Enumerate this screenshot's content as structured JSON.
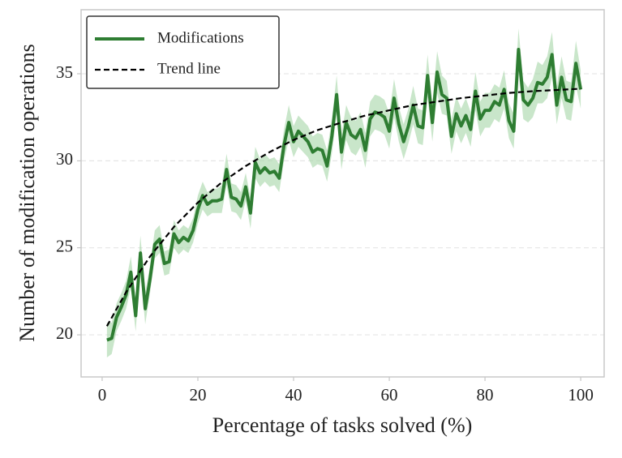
{
  "chart_data": {
    "type": "line",
    "xlabel": "Percentage of tasks solved (%)",
    "ylabel": "Number of modification operations",
    "xlim": [
      -4.4,
      104.9
    ],
    "ylim": [
      17.58,
      38.68
    ],
    "xticks": [
      0,
      20,
      40,
      60,
      80,
      100
    ],
    "yticks": [
      20,
      25,
      30,
      35
    ],
    "grid": true,
    "legend": "upper left",
    "series": [
      {
        "name": "Modifications",
        "color": "#2e7d32",
        "band_color": "#a5d6a7",
        "x": [
          1,
          2,
          3,
          4,
          5,
          6,
          7,
          8,
          9,
          10,
          11,
          12,
          13,
          14,
          15,
          16,
          17,
          18,
          19,
          20,
          21,
          22,
          23,
          24,
          25,
          26,
          27,
          28,
          29,
          30,
          31,
          32,
          33,
          34,
          35,
          36,
          37,
          38,
          39,
          40,
          41,
          42,
          43,
          44,
          45,
          46,
          47,
          48,
          49,
          50,
          51,
          52,
          53,
          54,
          55,
          56,
          57,
          58,
          59,
          60,
          61,
          62,
          63,
          64,
          65,
          66,
          67,
          68,
          69,
          70,
          71,
          72,
          73,
          74,
          75,
          76,
          77,
          78,
          79,
          80,
          81,
          82,
          83,
          84,
          85,
          86,
          87,
          88,
          89,
          90,
          91,
          92,
          93,
          94,
          95,
          96,
          97,
          98,
          99,
          100
        ],
        "values": [
          19.7,
          19.8,
          21.0,
          21.6,
          22.3,
          23.6,
          21.1,
          24.7,
          21.5,
          23.2,
          25.2,
          25.5,
          24.1,
          24.2,
          25.8,
          25.3,
          25.6,
          25.4,
          26.0,
          27.2,
          28.0,
          27.5,
          27.7,
          27.7,
          27.8,
          29.5,
          27.9,
          27.8,
          27.4,
          28.5,
          27.0,
          29.9,
          29.3,
          29.6,
          29.3,
          29.4,
          29.0,
          30.9,
          32.2,
          31.1,
          31.7,
          31.4,
          31.1,
          30.5,
          30.7,
          30.6,
          29.7,
          31.4,
          33.8,
          30.5,
          32.2,
          31.5,
          31.3,
          31.8,
          30.6,
          32.4,
          32.8,
          32.7,
          32.5,
          31.7,
          33.6,
          32.1,
          31.1,
          32.0,
          33.2,
          32.0,
          31.9,
          34.9,
          32.2,
          35.1,
          33.8,
          33.6,
          31.4,
          32.7,
          32.0,
          32.6,
          31.8,
          34.0,
          32.4,
          32.9,
          32.9,
          33.4,
          33.2,
          34.1,
          32.3,
          31.7,
          36.4,
          33.5,
          33.2,
          33.6,
          34.5,
          34.4,
          34.8,
          36.1,
          33.2,
          34.8,
          33.5,
          33.4,
          35.6,
          34.1
        ],
        "error": [
          1.0,
          0.9,
          0.8,
          0.8,
          0.8,
          0.9,
          0.9,
          1.0,
          0.9,
          0.8,
          0.8,
          0.8,
          0.7,
          0.7,
          0.8,
          0.7,
          0.7,
          0.7,
          0.7,
          0.8,
          0.8,
          0.7,
          0.7,
          0.7,
          0.8,
          0.9,
          0.8,
          0.8,
          0.8,
          0.8,
          0.9,
          0.9,
          0.8,
          0.8,
          0.8,
          0.8,
          0.8,
          0.9,
          1.0,
          0.9,
          0.9,
          0.9,
          0.9,
          0.9,
          0.9,
          0.9,
          0.9,
          1.0,
          1.1,
          1.0,
          1.0,
          1.0,
          1.0,
          1.0,
          1.0,
          1.0,
          1.0,
          1.0,
          1.0,
          1.0,
          1.1,
          1.0,
          1.0,
          1.0,
          1.1,
          1.0,
          1.0,
          1.2,
          1.1,
          1.2,
          1.1,
          1.0,
          1.0,
          1.0,
          1.0,
          1.0,
          1.0,
          1.1,
          1.0,
          1.0,
          1.0,
          1.0,
          1.0,
          1.1,
          1.0,
          1.0,
          1.2,
          1.1,
          1.0,
          1.1,
          1.2,
          1.1,
          1.2,
          1.3,
          1.1,
          1.2,
          1.1,
          1.1,
          1.3,
          1.1
        ]
      },
      {
        "name": "Trend line",
        "color": "#000000",
        "dashed": true,
        "x": [
          1,
          5,
          10,
          15,
          20,
          25,
          30,
          35,
          40,
          45,
          50,
          55,
          60,
          65,
          70,
          75,
          80,
          85,
          90,
          95,
          100
        ],
        "values": [
          20.5,
          22.45,
          24.5,
          26.2,
          27.6,
          28.76,
          29.7,
          30.5,
          31.2,
          31.76,
          32.2,
          32.6,
          32.9,
          33.2,
          33.4,
          33.6,
          33.75,
          33.9,
          34.0,
          34.07,
          34.14
        ]
      }
    ]
  }
}
